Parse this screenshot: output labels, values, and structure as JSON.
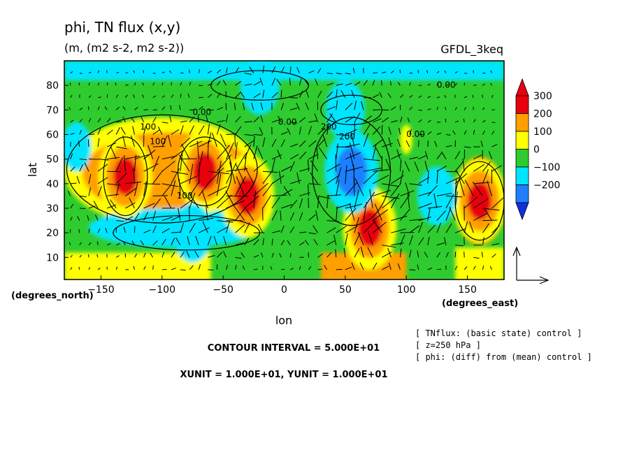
{
  "chart_data": {
    "type": "contour-vector",
    "title": "phi, TN flux (x,y)",
    "subtitle": "(m, (m2 s-2, m2 s-2))",
    "model": "GFDL_3keq",
    "xlabel": "lon",
    "ylabel": "lat",
    "x_unit_label": "(degrees_east)",
    "y_unit_label": "(degrees_north)",
    "xlim": [
      -180,
      180
    ],
    "ylim": [
      1,
      90
    ],
    "x_ticks": [
      -150,
      -100,
      -50,
      0,
      50,
      100,
      150
    ],
    "y_ticks": [
      10,
      20,
      30,
      40,
      50,
      60,
      70,
      80
    ],
    "colorbar": {
      "levels": [
        300,
        200,
        100,
        0,
        -100,
        -200
      ],
      "colors": [
        "#e8000b",
        "#ff9f00",
        "#ffff00",
        "#2ecc2e",
        "#00e5ff",
        "#1f7fff",
        "#1030e0"
      ]
    },
    "contour_labels": [
      "0.00",
      "0.00",
      "0.00",
      "0.00",
      "100",
      "200",
      "100",
      "200",
      "100"
    ],
    "anomaly_centers": [
      {
        "lon": -130,
        "lat": 43,
        "value": 300
      },
      {
        "lon": -65,
        "lat": 45,
        "value": 300
      },
      {
        "lon": -30,
        "lat": 35,
        "value": 300
      },
      {
        "lon": 70,
        "lat": 22,
        "value": 300
      },
      {
        "lon": 160,
        "lat": 33,
        "value": 300
      },
      {
        "lon": 55,
        "lat": 45,
        "value": -250
      },
      {
        "lon": -75,
        "lat": 20,
        "value": -100
      },
      {
        "lon": -20,
        "lat": 80,
        "value": -100
      },
      {
        "lon": 50,
        "lat": 70,
        "value": -100
      },
      {
        "lon": 125,
        "lat": 35,
        "value": -100
      }
    ],
    "contour_interval_text": "CONTOUR INTERVAL = 5.000E+01",
    "unit_text": "XUNIT = 1.000E+01, YUNIT = 1.000E+01",
    "notes": [
      "[ TNflux: (basic state) control ]",
      "[ z=250 hPa ]",
      "[ phi: (diff) from (mean) control ]"
    ]
  }
}
